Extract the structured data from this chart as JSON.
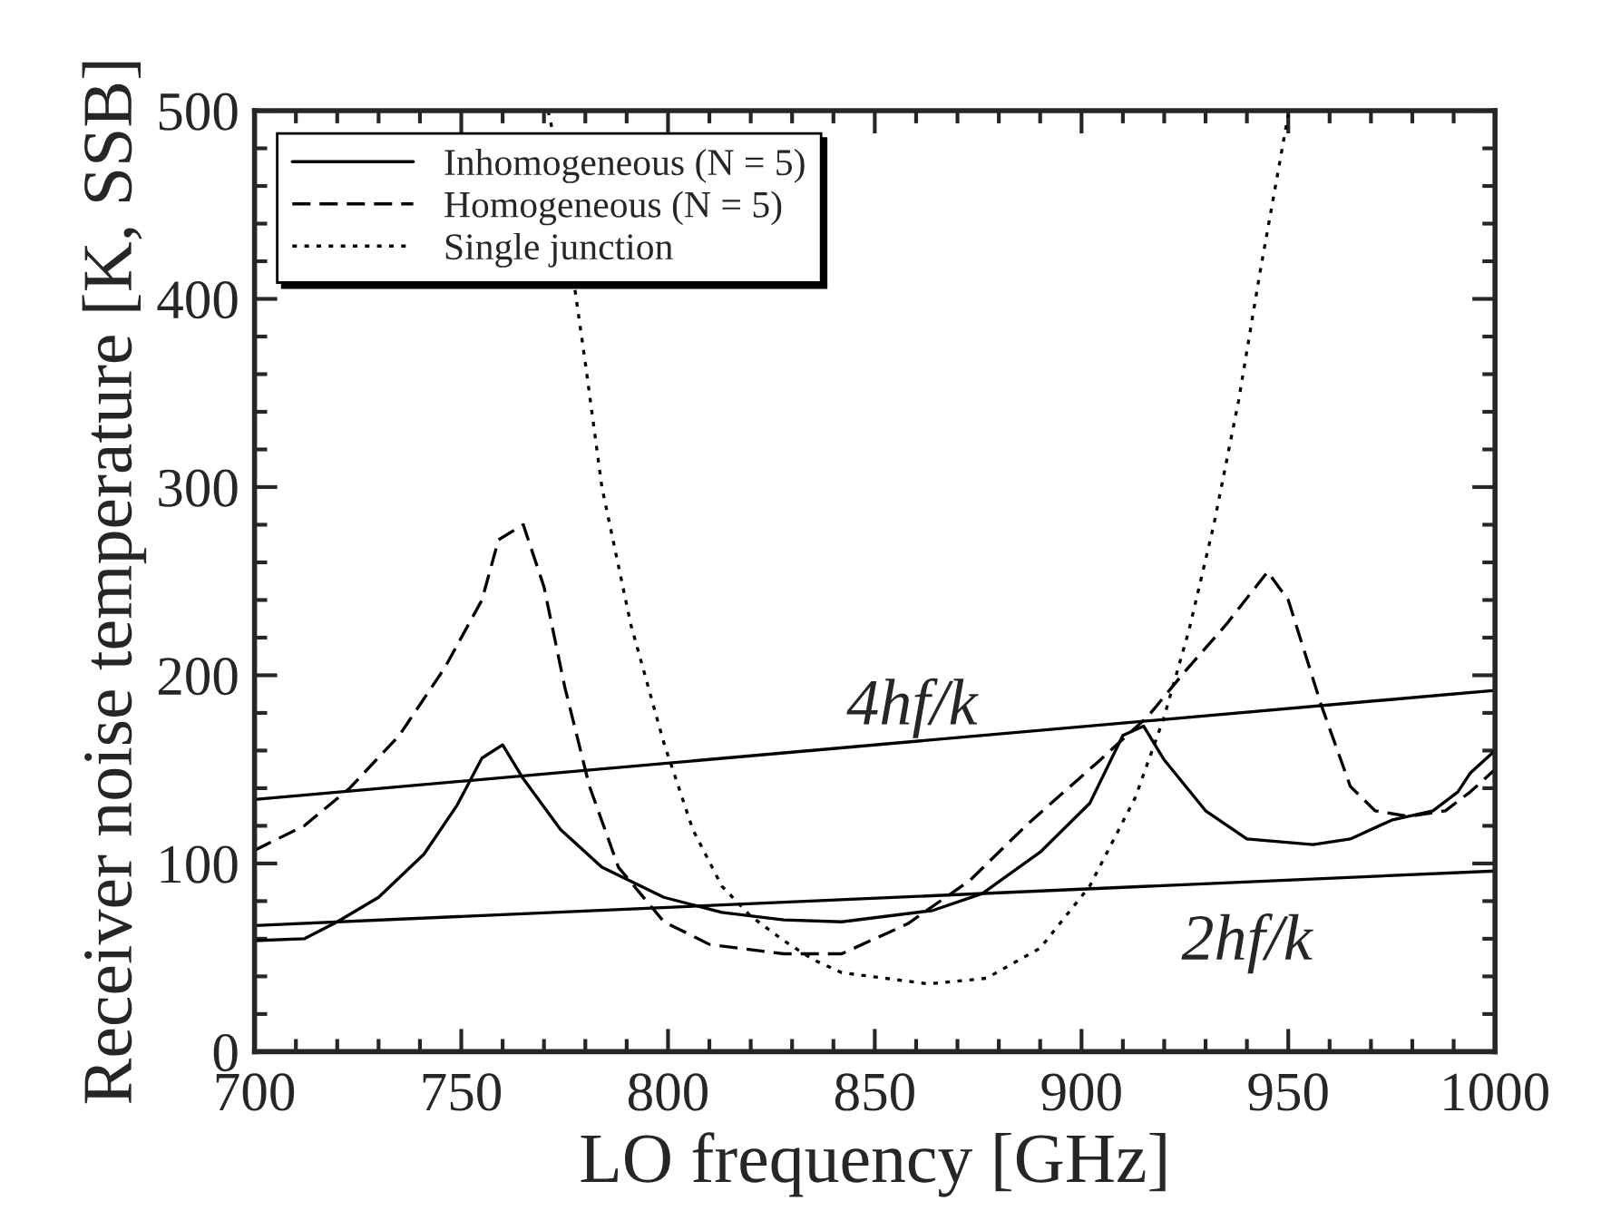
{
  "chart_data": {
    "type": "line",
    "xlabel": "LO frequency [GHz]",
    "ylabel": "Receiver noise temperature [K, SSB]",
    "xlim": [
      700,
      1000
    ],
    "ylim": [
      0,
      500
    ],
    "xticks": [
      700,
      750,
      800,
      850,
      900,
      950,
      1000,
      {
        "value": 710,
        "label": null
      },
      {
        "value": 720,
        "label": null
      },
      {
        "value": 730,
        "label": null
      },
      {
        "value": 740,
        "label": null
      },
      {
        "value": 760,
        "label": null
      },
      {
        "value": 770,
        "label": null
      },
      {
        "value": 780,
        "label": null
      },
      {
        "value": 790,
        "label": null
      },
      {
        "value": 810,
        "label": null
      },
      {
        "value": 820,
        "label": null
      },
      {
        "value": 830,
        "label": null
      },
      {
        "value": 840,
        "label": null
      },
      {
        "value": 860,
        "label": null
      },
      {
        "value": 870,
        "label": null
      },
      {
        "value": 880,
        "label": null
      },
      {
        "value": 890,
        "label": null
      },
      {
        "value": 910,
        "label": null
      },
      {
        "value": 920,
        "label": null
      },
      {
        "value": 930,
        "label": null
      },
      {
        "value": 940,
        "label": null
      },
      {
        "value": 960,
        "label": null
      },
      {
        "value": 970,
        "label": null
      },
      {
        "value": 980,
        "label": null
      },
      {
        "value": 990,
        "label": null
      }
    ],
    "yticks": [
      0,
      100,
      200,
      300,
      400,
      500,
      {
        "value": 20,
        "label": null
      },
      {
        "value": 40,
        "label": null
      },
      {
        "value": 60,
        "label": null
      },
      {
        "value": 80,
        "label": null
      },
      {
        "value": 120,
        "label": null
      },
      {
        "value": 140,
        "label": null
      },
      {
        "value": 160,
        "label": null
      },
      {
        "value": 180,
        "label": null
      },
      {
        "value": 220,
        "label": null
      },
      {
        "value": 240,
        "label": null
      },
      {
        "value": 260,
        "label": null
      },
      {
        "value": 280,
        "label": null
      },
      {
        "value": 320,
        "label": null
      },
      {
        "value": 340,
        "label": null
      },
      {
        "value": 360,
        "label": null
      },
      {
        "value": 380,
        "label": null
      },
      {
        "value": 420,
        "label": null
      },
      {
        "value": 440,
        "label": null
      },
      {
        "value": 460,
        "label": null
      },
      {
        "value": 480,
        "label": null
      }
    ],
    "grid": false,
    "legend": "top left",
    "marker": "none",
    "series": [
      {
        "name": "Inhomogeneous (N = 5)",
        "color": "#000000",
        "line_style": "solid",
        "x": [
          700,
          712,
          720,
          730,
          741,
          749,
          755,
          760,
          765,
          774,
          784,
          799,
          813,
          828,
          842,
          864,
          876,
          890,
          902,
          910,
          915,
          920,
          930,
          940,
          956,
          965,
          975,
          985,
          991,
          994,
          1000
        ],
        "values": [
          59,
          60,
          69,
          82,
          105,
          131,
          156,
          163,
          145,
          118,
          98,
          82,
          74,
          70,
          69,
          75,
          84,
          106,
          132,
          168,
          173,
          155,
          128,
          113,
          110,
          113,
          123,
          128,
          138,
          148,
          160
        ]
      },
      {
        "name": "Homogeneous (N = 5)",
        "color": "#000000",
        "line_style": "dashed",
        "x": [
          700,
          712,
          723,
          735,
          746,
          755,
          759,
          765,
          770,
          775,
          781,
          788,
          799,
          810,
          828,
          842,
          858,
          873,
          887,
          904,
          916,
          925,
          935,
          945,
          950,
          958,
          965,
          971,
          979,
          988,
          994,
          1000
        ],
        "values": [
          107,
          120,
          140,
          168,
          204,
          240,
          272,
          280,
          247,
          194,
          141,
          98,
          69,
          57,
          52,
          52,
          68,
          91,
          121,
          154,
          178,
          202,
          227,
          255,
          240,
          184,
          141,
          128,
          125,
          128,
          138,
          150
        ]
      },
      {
        "name": "Single junction",
        "color": "#000000",
        "line_style": "dotted",
        "x": [
          771,
          772,
          775,
          780,
          784,
          791,
          799,
          806,
          813,
          820,
          828,
          835,
          842,
          863,
          877,
          890,
          902,
          913,
          920,
          926,
          932,
          938,
          943,
          950
        ],
        "values": [
          500,
          490,
          null,
          366,
          300,
          227,
          164,
          118,
          88,
          72,
          59,
          49,
          42,
          36,
          39,
          55,
          88,
          135,
          178,
          224,
          280,
          346,
          412,
          498
        ]
      },
      {
        "color": "#000000",
        "line_style": "solid",
        "x": [
          700,
          1000
        ],
        "values": [
          134,
          192
        ]
      },
      {
        "color": "#000000",
        "line_style": "solid",
        "x": [
          700,
          1000
        ],
        "values": [
          67,
          96
        ]
      }
    ],
    "annotations": [
      "4hf/k",
      "2hf/k"
    ]
  }
}
